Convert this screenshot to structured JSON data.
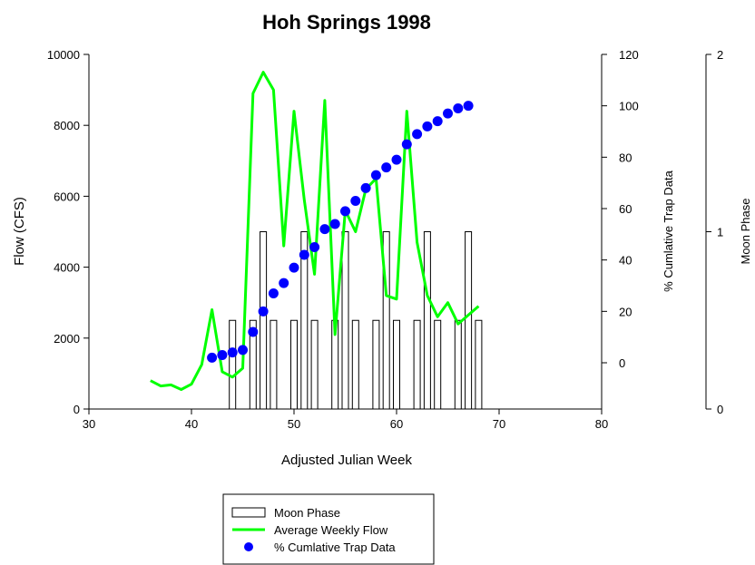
{
  "chart_data": {
    "type": "line",
    "title": "Hoh Springs 1998",
    "xlabel": "Adjusted Julian Week",
    "ylabel": "Flow (CFS)",
    "y2label": "% Cumlative Trap Data",
    "y3label": "Moon Phase",
    "xlim": [
      30,
      80
    ],
    "ylim": [
      0,
      10000
    ],
    "y2lim": [
      -18,
      120
    ],
    "y3lim": [
      0,
      2
    ],
    "x_ticks": [
      30,
      40,
      50,
      60,
      70,
      80
    ],
    "y_ticks": [
      0,
      2000,
      4000,
      6000,
      8000,
      10000
    ],
    "y2_ticks": [
      0,
      20,
      40,
      60,
      80,
      100,
      120
    ],
    "y3_ticks": [
      0,
      1,
      2
    ],
    "grid": false,
    "legend_position": "bottom-center",
    "series": [
      {
        "name": "Moon Phase",
        "kind": "step-bar",
        "axis": "y3",
        "x": [
          44,
          46,
          47,
          48,
          50,
          51,
          52,
          54,
          55,
          56,
          58,
          59,
          60,
          62,
          63,
          64,
          66,
          67,
          68
        ],
        "values": [
          0.5,
          0.5,
          1,
          0.5,
          0.5,
          1,
          0.5,
          0.5,
          1,
          0.5,
          0.5,
          1,
          0.5,
          0.5,
          1,
          0.5,
          0.5,
          1,
          0.5
        ]
      },
      {
        "name": "Average Weekly Flow",
        "kind": "line",
        "axis": "y",
        "color": "#00ff00",
        "x": [
          36,
          37,
          38,
          39,
          40,
          41,
          42,
          43,
          44,
          45,
          46,
          47,
          48,
          49,
          50,
          51,
          52,
          53,
          54,
          55,
          56,
          57,
          58,
          59,
          60,
          61,
          62,
          63,
          64,
          65,
          66,
          67,
          68
        ],
        "values": [
          800,
          650,
          680,
          550,
          700,
          1250,
          2800,
          1050,
          900,
          1150,
          8900,
          9500,
          9000,
          4600,
          8400,
          5900,
          3800,
          8700,
          2100,
          5600,
          5000,
          6200,
          6500,
          3200,
          3100,
          8400,
          4700,
          3200,
          2600,
          3000,
          2400,
          2650,
          2900
        ]
      },
      {
        "name": "% Cumlative Trap Data",
        "kind": "scatter",
        "axis": "y2",
        "color": "#0000ff",
        "x": [
          42,
          43,
          44,
          45,
          46,
          47,
          48,
          49,
          50,
          51,
          52,
          53,
          54,
          55,
          56,
          57,
          58,
          59,
          60,
          61,
          62,
          63,
          64,
          65,
          66,
          67
        ],
        "values": [
          2,
          3,
          4,
          5,
          12,
          20,
          27,
          31,
          37,
          42,
          45,
          52,
          54,
          59,
          63,
          68,
          73,
          76,
          79,
          85,
          89,
          92,
          94,
          97,
          99,
          100
        ]
      }
    ]
  },
  "legend": {
    "items": [
      {
        "label": "Moon Phase"
      },
      {
        "label": "Average Weekly Flow"
      },
      {
        "label": "% Cumlative Trap Data"
      }
    ]
  }
}
